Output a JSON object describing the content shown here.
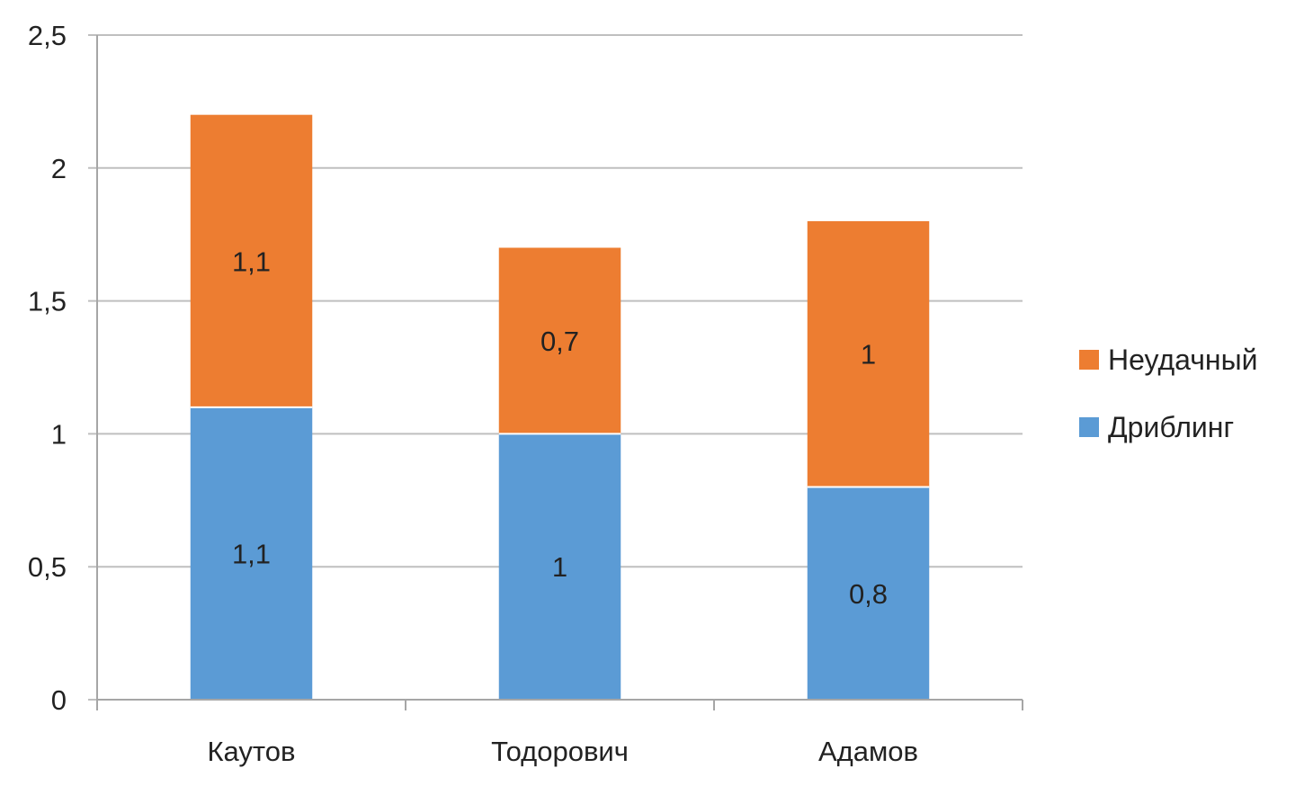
{
  "chart_data": {
    "type": "bar",
    "stacked": true,
    "categories": [
      "Каутов",
      "Тодорович",
      "Адамов"
    ],
    "series": [
      {
        "name": "Дриблинг",
        "values": [
          1.1,
          1,
          0.8
        ],
        "labels": [
          "1,1",
          "1",
          "0,8"
        ],
        "color": "#5b9bd5"
      },
      {
        "name": "Неудачный",
        "values": [
          1.1,
          0.7,
          1
        ],
        "labels": [
          "1,1",
          "0,7",
          "1"
        ],
        "color": "#ed7d31"
      }
    ],
    "ylim": [
      0,
      2.5
    ],
    "yticks": [
      0,
      0.5,
      1,
      1.5,
      2,
      2.5
    ],
    "ytick_labels": [
      "0",
      "0,5",
      "1",
      "1,5",
      "2",
      "2,5"
    ],
    "grid": true,
    "legend": {
      "position": "right",
      "entries": [
        "Неудачный",
        "Дриблинг"
      ]
    },
    "title": "",
    "xlabel": "",
    "ylabel": ""
  },
  "colors": {
    "grid": "#bfbfbf",
    "axis": "#a6a6a6",
    "text": "#222222"
  }
}
